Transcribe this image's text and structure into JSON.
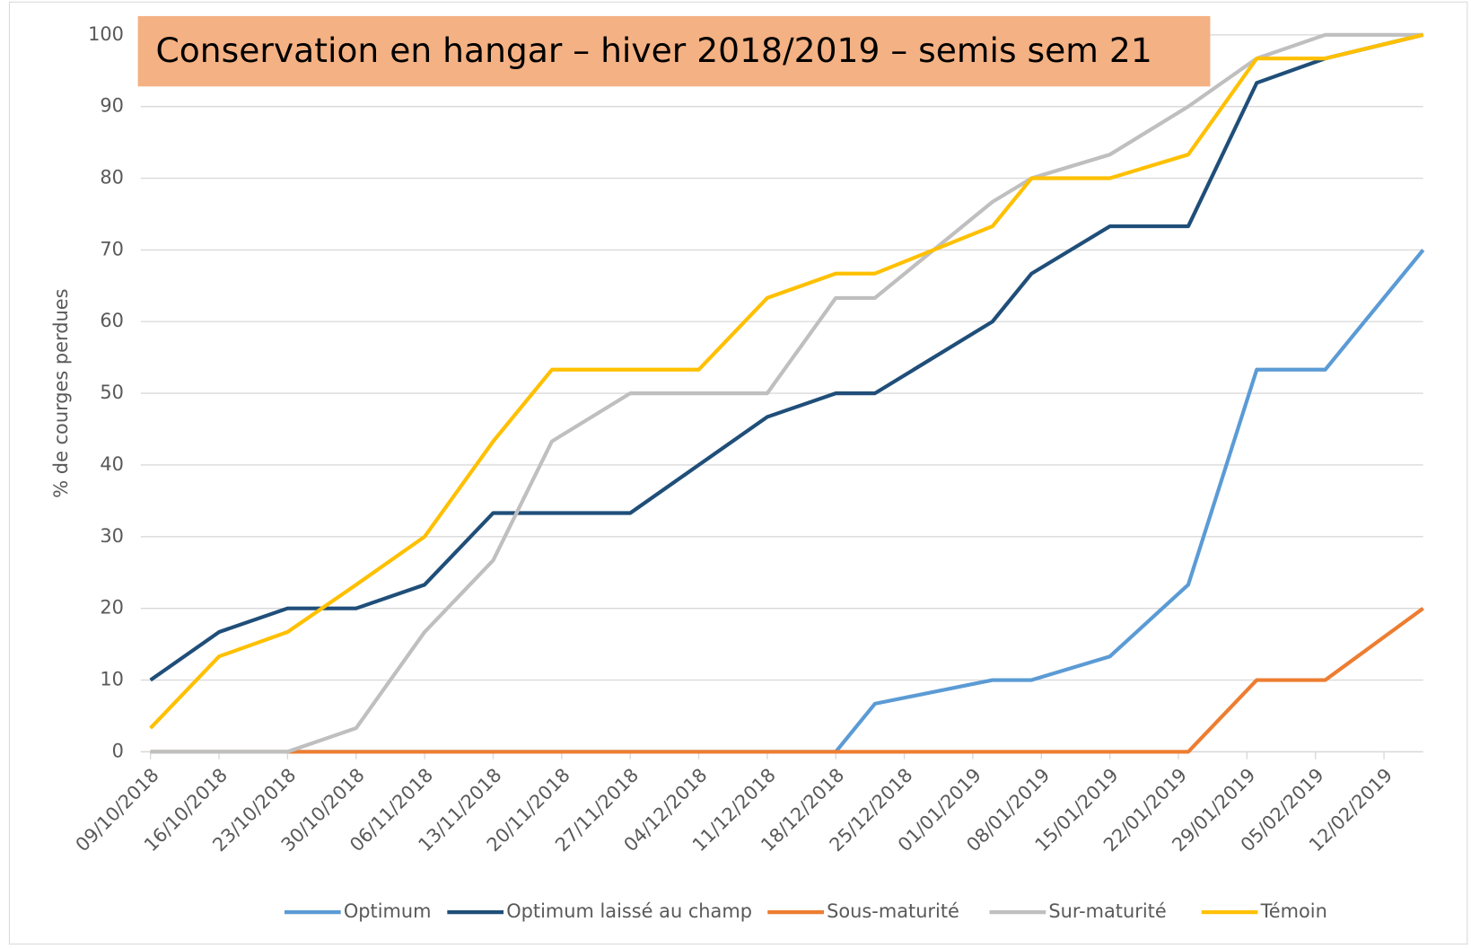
{
  "chart_data": {
    "type": "line",
    "title": "Conservation en hangar – hiver 2018/2019 – semis sem 21",
    "y_label": "% de courges perdues",
    "x": [
      "09/10/2018",
      "16/10/2018",
      "23/10/2018",
      "30/10/2018",
      "06/11/2018",
      "13/11/2018",
      "19/11/2018",
      "27/11/2018",
      "04/12/2018",
      "11/12/2018",
      "18/12/2018",
      "22/12/2018",
      "03/01/2019",
      "07/01/2019",
      "15/01/2019",
      "23/01/2019",
      "30/01/2019",
      "06/02/2019",
      "16/02/2019"
    ],
    "series": [
      {
        "name": "Optimum",
        "color": "#5b9bd5",
        "values": [
          0,
          0,
          0,
          0,
          0,
          0,
          0,
          0,
          0,
          0,
          0,
          6.7,
          10,
          10,
          13.3,
          23.3,
          53.3,
          53.3,
          70
        ]
      },
      {
        "name": "Optimum laissé au champ",
        "color": "#1f4e79",
        "values": [
          10,
          16.7,
          20,
          20,
          23.3,
          33.3,
          33.3,
          33.3,
          40,
          46.7,
          50,
          50,
          60,
          66.7,
          73.3,
          73.3,
          93.3,
          96.7,
          100
        ]
      },
      {
        "name": "Sous-maturité",
        "color": "#ed7d31",
        "values": [
          0,
          0,
          0,
          0,
          0,
          0,
          0,
          0,
          0,
          0,
          0,
          0,
          0,
          0,
          0,
          0,
          10,
          10,
          20
        ]
      },
      {
        "name": "Sur-maturité",
        "color": "#bfbfbf",
        "values": [
          0,
          0,
          0,
          3.3,
          16.7,
          26.7,
          43.3,
          50,
          50,
          50,
          63.3,
          63.3,
          76.7,
          80,
          83.3,
          90,
          96.7,
          100,
          100
        ]
      },
      {
        "name": "Témoin",
        "color": "#ffc000",
        "values": [
          3.3,
          13.3,
          16.7,
          23.3,
          30,
          43.3,
          53.3,
          53.3,
          53.3,
          63.3,
          66.7,
          66.7,
          73.3,
          80,
          80,
          83.3,
          96.7,
          96.7,
          100
        ]
      }
    ],
    "xlim": [
      "08/10/2018",
      "16/02/2019"
    ],
    "xticks": [
      "09/10/2018",
      "16/10/2018",
      "23/10/2018",
      "30/10/2018",
      "06/11/2018",
      "13/11/2018",
      "20/11/2018",
      "27/11/2018",
      "04/12/2018",
      "11/12/2018",
      "18/12/2018",
      "25/12/2018",
      "01/01/2019",
      "08/01/2019",
      "15/01/2019",
      "22/01/2019",
      "29/01/2019",
      "05/02/2019",
      "12/02/2019"
    ],
    "ylim": [
      0,
      100
    ],
    "yticks": [
      0,
      10,
      20,
      30,
      40,
      50,
      60,
      70,
      80,
      90,
      100
    ],
    "grid": true,
    "legend": "bottom"
  }
}
